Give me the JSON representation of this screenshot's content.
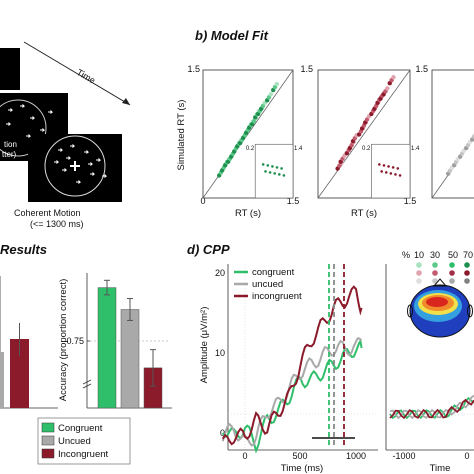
{
  "panel_a": {
    "time_label": "Time",
    "frame_2_text_1": "tion",
    "frame_2_text_2": "tter)",
    "caption_line_1": "Coherent Motion",
    "caption_line_2": "(<= 1300 ms)"
  },
  "panel_b": {
    "title": "b) Model Fit",
    "ylabel": "Simulated RT (s)",
    "xlabel": "RT (s)",
    "tick_0": "0",
    "tick_15": "1.5",
    "inset_tick_low": "0.2",
    "inset_tick_high": "1.4",
    "colors": [
      "#1e8f4e",
      "#8b1a2b",
      "#9e9e9e"
    ]
  },
  "panel_c": {
    "title": "Results",
    "ylabel": "Accuracy (proportion correct)",
    "ytick": "0.75",
    "legend": [
      {
        "label": "Congruent",
        "color": "#2fbf6a"
      },
      {
        "label": "Uncued",
        "color": "#a9a9a9"
      },
      {
        "label": "Incongruent",
        "color": "#8b1a2b"
      }
    ]
  },
  "panel_d": {
    "title": "d) CPP",
    "ylabel": "Amplitude (μV/m²)",
    "xlabel_left": "Time (ms)",
    "xlabel_right": "Time",
    "yticks": [
      "20",
      "10",
      "0"
    ],
    "xticks_left": [
      "0",
      "500",
      "1000"
    ],
    "xticks_right": [
      "-1000",
      "0"
    ],
    "legend": [
      {
        "label": "congruent",
        "color": "#2fbf6a"
      },
      {
        "label": "uncued",
        "color": "#a9a9a9"
      },
      {
        "label": "incongruent",
        "color": "#8b1a2b"
      }
    ],
    "percent_label": "%",
    "percent_values": [
      "10",
      "30",
      "50",
      "70"
    ]
  },
  "chart_data": [
    {
      "type": "scatter",
      "title": "b) Model Fit",
      "xlabel": "RT (s)",
      "ylabel": "Simulated RT (s)",
      "xlim": [
        0,
        1.5
      ],
      "ylim": [
        0,
        1.5
      ],
      "series": [
        {
          "x": [
            0.3,
            0.35,
            0.4,
            0.45,
            0.5,
            0.55,
            0.6,
            0.65,
            0.7,
            0.75,
            0.8,
            0.85,
            0.9,
            0.95,
            1.0,
            1.1,
            1.2
          ],
          "y": [
            0.3,
            0.36,
            0.42,
            0.46,
            0.52,
            0.58,
            0.64,
            0.68,
            0.74,
            0.8,
            0.86,
            0.9,
            0.98,
            1.02,
            1.08,
            1.18,
            1.3
          ]
        },
        {
          "x": [
            0.35,
            0.4,
            0.5,
            0.55,
            0.6,
            0.7,
            0.75,
            0.8,
            0.9,
            0.95,
            1.0,
            1.05,
            1.1,
            1.2
          ],
          "y": [
            0.38,
            0.46,
            0.56,
            0.62,
            0.7,
            0.78,
            0.85,
            0.92,
            1.02,
            1.08,
            1.15,
            1.2,
            1.25,
            1.38
          ]
        },
        {
          "x": [
            0.3,
            0.4,
            0.5,
            0.6,
            0.7,
            0.8
          ],
          "y": [
            0.32,
            0.42,
            0.52,
            0.62,
            0.72,
            0.82
          ]
        }
      ]
    },
    {
      "type": "bar",
      "title": "Results",
      "ylabel": "Accuracy (proportion correct)",
      "categories": [
        "Congruent",
        "Uncued",
        "Incongruent"
      ],
      "values": [
        0.93,
        0.87,
        0.71
      ],
      "errors": [
        0.02,
        0.03,
        0.05
      ]
    },
    {
      "type": "line",
      "title": "d) CPP",
      "xlabel": "Time (ms)",
      "ylabel": "Amplitude (μV/m²)",
      "xlim": [
        -200,
        1100
      ],
      "ylim": [
        -3,
        25
      ],
      "x": [
        -200,
        -100,
        0,
        100,
        200,
        300,
        400,
        500,
        600,
        700,
        800,
        900,
        1000,
        1050
      ],
      "series": [
        {
          "name": "congruent",
          "values": [
            1,
            0,
            1,
            -1,
            2,
            3,
            5,
            7,
            7,
            8,
            9,
            10,
            11,
            11
          ]
        },
        {
          "name": "uncued",
          "values": [
            0,
            1,
            -1,
            0,
            3,
            4,
            6,
            8,
            9,
            10,
            11,
            11,
            11,
            12
          ]
        },
        {
          "name": "incongruent",
          "values": [
            -1,
            0,
            0,
            2,
            1,
            3,
            5,
            9,
            12,
            14,
            16,
            17,
            18,
            16
          ]
        }
      ]
    }
  ]
}
